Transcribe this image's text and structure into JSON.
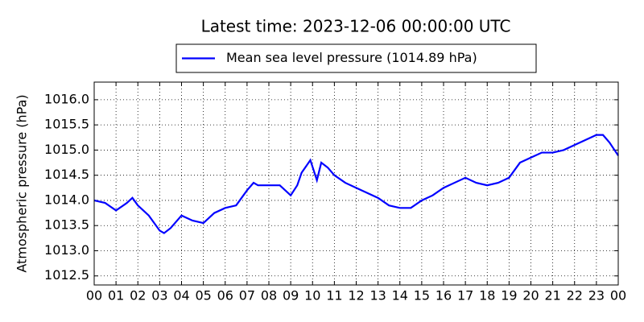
{
  "chart_data": {
    "type": "line",
    "title": "Latest time: 2023-12-06 00:00:00 UTC",
    "y_label": "Atmospheric pressure (hPa)",
    "x": [
      0,
      0.5,
      1,
      1.5,
      1.75,
      2,
      2.5,
      3,
      3.2,
      3.5,
      4,
      4.5,
      5,
      5.5,
      6,
      6.5,
      7,
      7.3,
      7.5,
      8,
      8.5,
      9,
      9.3,
      9.5,
      9.9,
      10.2,
      10.4,
      10.7,
      11,
      11.5,
      12,
      12.5,
      13,
      13.5,
      14,
      14.5,
      15,
      15.5,
      16,
      16.5,
      17,
      17.5,
      18,
      18.5,
      19,
      19.5,
      20,
      20.5,
      21,
      21.5,
      22,
      22.5,
      23,
      23.3,
      23.6,
      24
    ],
    "series": [
      {
        "name": "Mean sea level pressure (1014.89 hPa)",
        "color": "#0000ff",
        "values": [
          1014.0,
          1013.95,
          1013.8,
          1013.95,
          1014.05,
          1013.9,
          1013.7,
          1013.4,
          1013.35,
          1013.45,
          1013.7,
          1013.6,
          1013.55,
          1013.75,
          1013.85,
          1013.9,
          1014.2,
          1014.35,
          1014.3,
          1014.3,
          1014.3,
          1014.1,
          1014.3,
          1014.55,
          1014.8,
          1014.4,
          1014.75,
          1014.65,
          1014.5,
          1014.35,
          1014.25,
          1014.15,
          1014.05,
          1013.9,
          1013.85,
          1013.85,
          1014.0,
          1014.1,
          1014.25,
          1014.35,
          1014.45,
          1014.35,
          1014.3,
          1014.35,
          1014.45,
          1014.75,
          1014.85,
          1014.95,
          1014.95,
          1015.0,
          1015.1,
          1015.2,
          1015.3,
          1015.3,
          1015.15,
          1014.89
        ]
      }
    ],
    "xlim": [
      0,
      24
    ],
    "xticks": [
      {
        "value": 0,
        "label": "00"
      },
      {
        "value": 1,
        "label": "01"
      },
      {
        "value": 2,
        "label": "02"
      },
      {
        "value": 3,
        "label": "03"
      },
      {
        "value": 4,
        "label": "04"
      },
      {
        "value": 5,
        "label": "05"
      },
      {
        "value": 6,
        "label": "06"
      },
      {
        "value": 7,
        "label": "07"
      },
      {
        "value": 8,
        "label": "08"
      },
      {
        "value": 9,
        "label": "09"
      },
      {
        "value": 10,
        "label": "10"
      },
      {
        "value": 11,
        "label": "11"
      },
      {
        "value": 12,
        "label": "12"
      },
      {
        "value": 13,
        "label": "13"
      },
      {
        "value": 14,
        "label": "14"
      },
      {
        "value": 15,
        "label": "15"
      },
      {
        "value": 16,
        "label": "16"
      },
      {
        "value": 17,
        "label": "17"
      },
      {
        "value": 18,
        "label": "18"
      },
      {
        "value": 19,
        "label": "19"
      },
      {
        "value": 20,
        "label": "20"
      },
      {
        "value": 21,
        "label": "21"
      },
      {
        "value": 22,
        "label": "22"
      },
      {
        "value": 23,
        "label": "23"
      },
      {
        "value": 24,
        "label": "00"
      }
    ],
    "ylim": [
      1012.32,
      1016.35
    ],
    "yticks": [
      {
        "value": 1012.5,
        "label": "1012.5"
      },
      {
        "value": 1013,
        "label": "1013.0"
      },
      {
        "value": 1013.5,
        "label": "1013.5"
      },
      {
        "value": 1014,
        "label": "1014.0"
      },
      {
        "value": 1014.5,
        "label": "1014.5"
      },
      {
        "value": 1015,
        "label": "1015.0"
      },
      {
        "value": 1015.5,
        "label": "1015.5"
      },
      {
        "value": 1016,
        "label": "1016.0"
      }
    ],
    "grid": true,
    "legend_position": "top"
  }
}
